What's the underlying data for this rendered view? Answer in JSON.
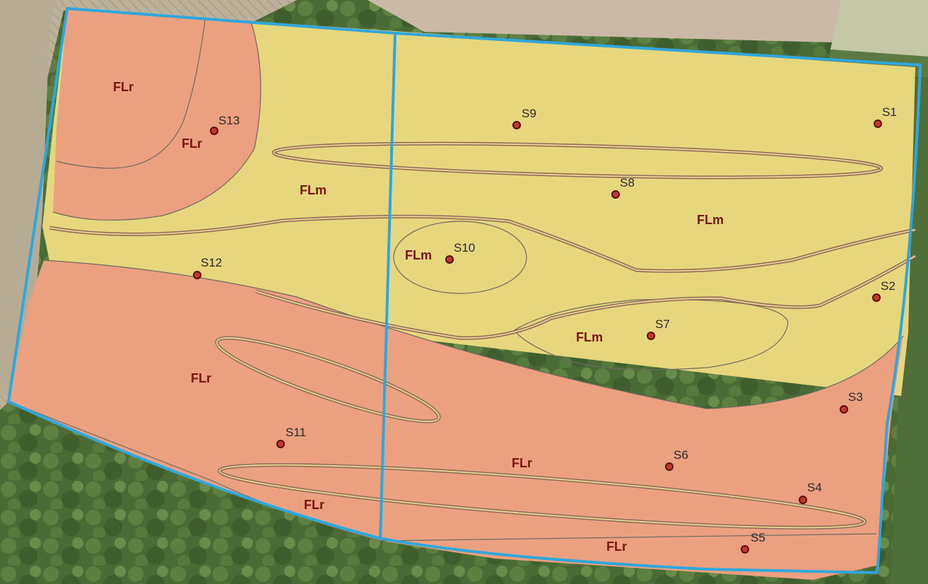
{
  "map": {
    "colors": {
      "flr_fill": "#eba07f",
      "flm_fill": "#e6d77e",
      "boundary": "#2fa6dc",
      "sample_point": "#c0392b",
      "label": "#7a1410"
    },
    "zone_labels": [
      {
        "id": "flr-1",
        "text": "FLr"
      },
      {
        "id": "flr-2",
        "text": "FLr"
      },
      {
        "id": "flr-3",
        "text": "FLr"
      },
      {
        "id": "flr-4",
        "text": "FLr"
      },
      {
        "id": "flr-5",
        "text": "FLr"
      },
      {
        "id": "flr-6",
        "text": "FLr"
      },
      {
        "id": "flm-1",
        "text": "FLm"
      },
      {
        "id": "flm-2",
        "text": "FLm"
      },
      {
        "id": "flm-3",
        "text": "FLm"
      },
      {
        "id": "flm-4",
        "text": "FLm"
      }
    ],
    "sample_points": [
      "S1",
      "S2",
      "S3",
      "S4",
      "S5",
      "S6",
      "S7",
      "S8",
      "S9",
      "S10",
      "S11",
      "S12",
      "S13"
    ]
  }
}
